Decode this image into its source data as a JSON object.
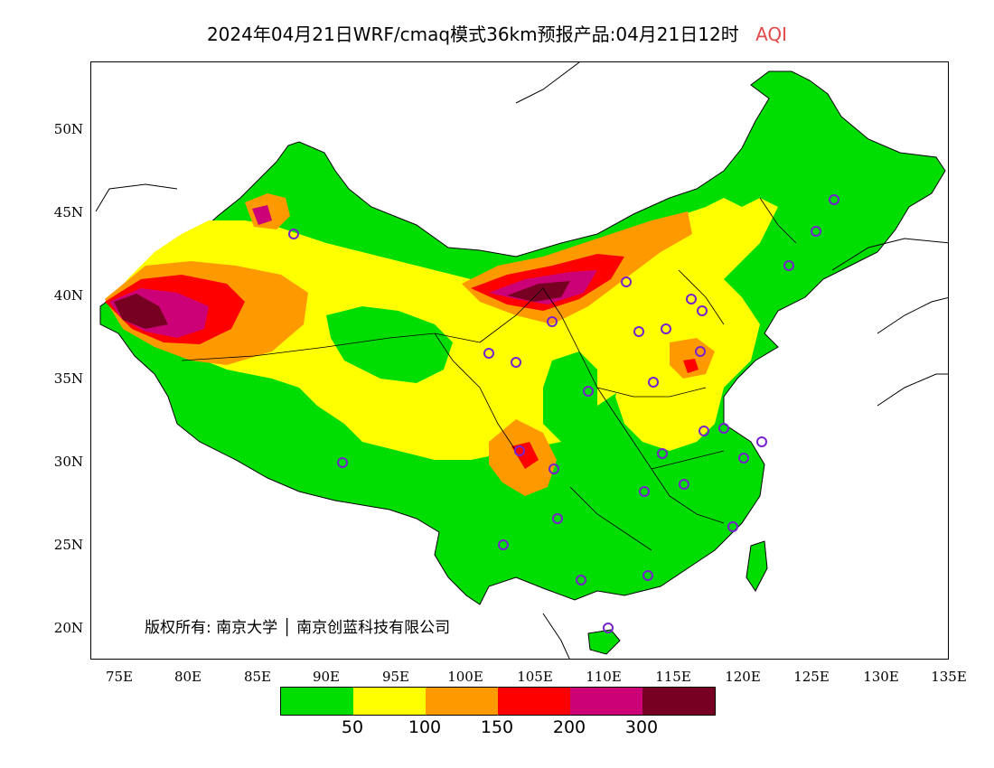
{
  "title": {
    "main": "2024年04月21日WRF/cmaq模式36km预报产品:04月21日12时",
    "variable": "AQI"
  },
  "axes": {
    "lat_labels": [
      "50N",
      "45N",
      "40N",
      "35N",
      "30N",
      "25N",
      "20N"
    ],
    "lon_labels": [
      "75E",
      "80E",
      "85E",
      "90E",
      "95E",
      "100E",
      "105E",
      "110E",
      "115E",
      "120E",
      "125E",
      "130E",
      "135E"
    ]
  },
  "copyright": "版权所有: 南京大学 │ 南京创蓝科技有限公司",
  "legend": {
    "colors": [
      "#00dd00",
      "#ffff00",
      "#ff9900",
      "#ff0000",
      "#cc0077",
      "#770022"
    ],
    "labels": [
      "50",
      "100",
      "150",
      "200",
      "300"
    ]
  },
  "colors": {
    "good": "#00dd00",
    "moderate": "#ffff00",
    "sensitive": "#ff9900",
    "unhealthy": "#ff0000",
    "very_unhealthy": "#cc0077",
    "hazardous": "#770022"
  }
}
